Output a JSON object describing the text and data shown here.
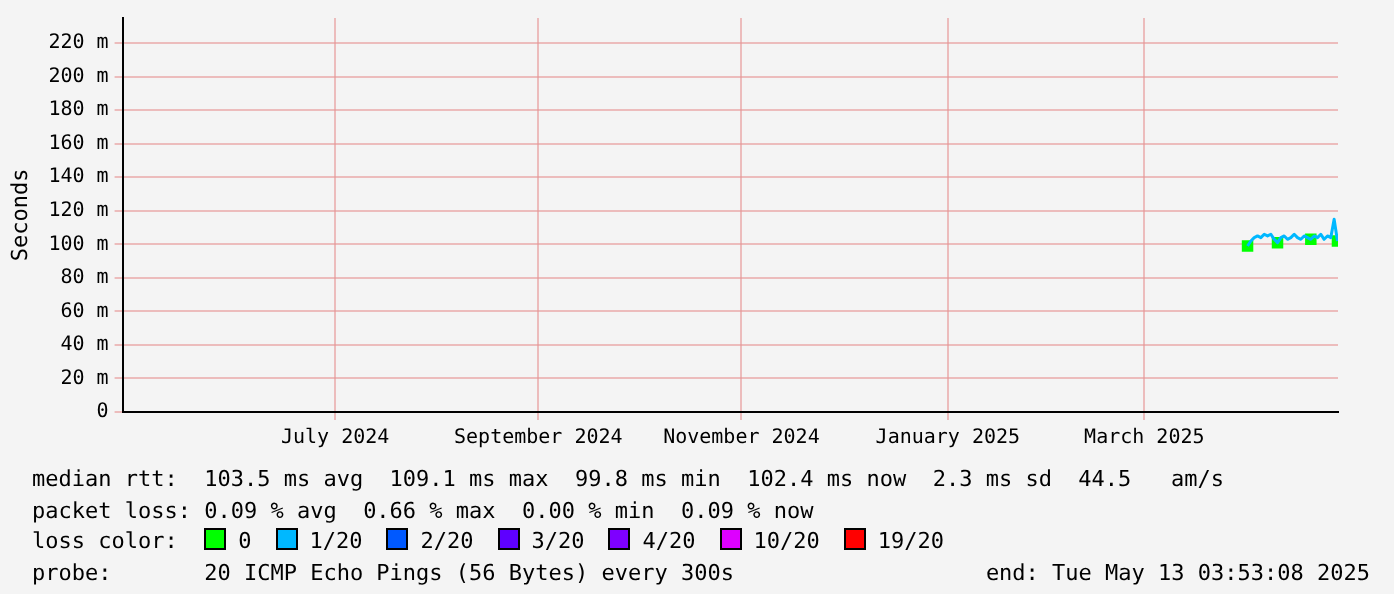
{
  "chart_data": {
    "type": "line",
    "ylabel": "Seconds",
    "x": [
      "2025-04-16",
      "2025-04-17",
      "2025-04-18",
      "2025-04-19",
      "2025-04-20",
      "2025-04-21",
      "2025-04-22",
      "2025-04-23",
      "2025-04-24",
      "2025-04-25",
      "2025-04-26",
      "2025-04-27",
      "2025-04-28",
      "2025-04-29",
      "2025-04-30",
      "2025-05-01",
      "2025-05-02",
      "2025-05-03",
      "2025-05-04",
      "2025-05-05",
      "2025-05-06",
      "2025-05-07",
      "2025-05-08",
      "2025-05-09",
      "2025-05-10",
      "2025-05-11",
      "2025-05-12",
      "2025-05-13"
    ],
    "series": [
      {
        "name": "0",
        "color": "#00ff00",
        "type": "scatter",
        "marker": "square",
        "values": [
          99,
          null,
          null,
          null,
          null,
          null,
          null,
          null,
          null,
          101,
          null,
          null,
          null,
          null,
          null,
          null,
          null,
          null,
          null,
          103,
          null,
          null,
          null,
          null,
          null,
          null,
          null,
          102
        ]
      },
      {
        "name": "1/20",
        "color": "#00b8ff",
        "values": [
          99,
          102,
          104,
          105,
          104,
          106,
          105,
          106,
          103,
          101,
          104,
          105,
          103,
          104,
          106,
          104,
          103,
          105,
          104,
          103,
          105,
          104,
          106,
          103,
          105,
          104,
          115,
          102
        ]
      },
      {
        "name": "2/20",
        "color": "#0059ff",
        "values": [
          null,
          null,
          null,
          null,
          null,
          null,
          null,
          null,
          null,
          null,
          null,
          null,
          null,
          null,
          null,
          null,
          null,
          null,
          null,
          null,
          null,
          null,
          null,
          null,
          null,
          null,
          null,
          null
        ]
      },
      {
        "name": "3/20",
        "color": "#5e00ff",
        "values": [
          null,
          null,
          null,
          null,
          null,
          null,
          null,
          null,
          null,
          null,
          null,
          null,
          null,
          null,
          null,
          null,
          null,
          null,
          null,
          null,
          null,
          null,
          null,
          null,
          null,
          null,
          null,
          null
        ]
      },
      {
        "name": "4/20",
        "color": "#7e00ff",
        "values": [
          null,
          null,
          null,
          null,
          null,
          null,
          null,
          null,
          null,
          null,
          null,
          null,
          null,
          null,
          null,
          null,
          null,
          null,
          null,
          null,
          null,
          null,
          null,
          null,
          null,
          null,
          null,
          null
        ]
      },
      {
        "name": "10/20",
        "color": "#dd00ff",
        "values": [
          null,
          null,
          null,
          null,
          null,
          null,
          null,
          null,
          null,
          null,
          null,
          null,
          null,
          null,
          null,
          null,
          null,
          null,
          null,
          null,
          null,
          null,
          null,
          null,
          null,
          null,
          null,
          null
        ]
      },
      {
        "name": "19/20",
        "color": "#ff0000",
        "values": [
          null,
          null,
          null,
          null,
          null,
          null,
          null,
          null,
          null,
          null,
          null,
          null,
          null,
          null,
          null,
          null,
          null,
          null,
          null,
          null,
          null,
          null,
          null,
          null,
          null,
          null,
          null,
          null
        ]
      }
    ],
    "legend": "bottom",
    "legend_title": "loss color:",
    "grid": true,
    "marker": "none",
    "line_style": "solid",
    "xlim": [
      "2024-05-13T03:53",
      "2025-05-13T03:53"
    ],
    "xticks": [
      {
        "value": "2024-07-16",
        "label": "July 2024"
      },
      {
        "value": "2024-09-15",
        "label": "September 2024"
      },
      {
        "value": "2024-11-15",
        "label": "November 2024"
      },
      {
        "value": "2025-01-16",
        "label": "January 2025"
      },
      {
        "value": "2025-03-16",
        "label": "March 2025"
      }
    ],
    "ylim": [
      0,
      235
    ],
    "yticks": [
      0,
      {
        "value": 20,
        "label": "20 m"
      },
      {
        "value": 40,
        "label": "40 m"
      },
      {
        "value": 60,
        "label": "60 m"
      },
      {
        "value": 80,
        "label": "80 m"
      },
      {
        "value": 100,
        "label": "100 m"
      },
      {
        "value": 120,
        "label": "120 m"
      },
      {
        "value": 140,
        "label": "140 m"
      },
      {
        "value": 160,
        "label": "160 m"
      },
      {
        "value": 180,
        "label": "180 m"
      },
      {
        "value": 200,
        "label": "200 m"
      },
      {
        "value": 220,
        "label": "220 m"
      }
    ],
    "annotations": [
      "median rtt:  103.5 ms avg  109.1 ms max  99.8 ms min  102.4 ms now  2.3 ms sd  44.5   am/s",
      "packet loss: 0.09 % avg  0.66 % max  0.00 % min  0.09 % now",
      "probe:       20 ICMP Echo Pings (56 Bytes) every 300s",
      "end: Tue May 13 03:53:08 2025"
    ]
  }
}
